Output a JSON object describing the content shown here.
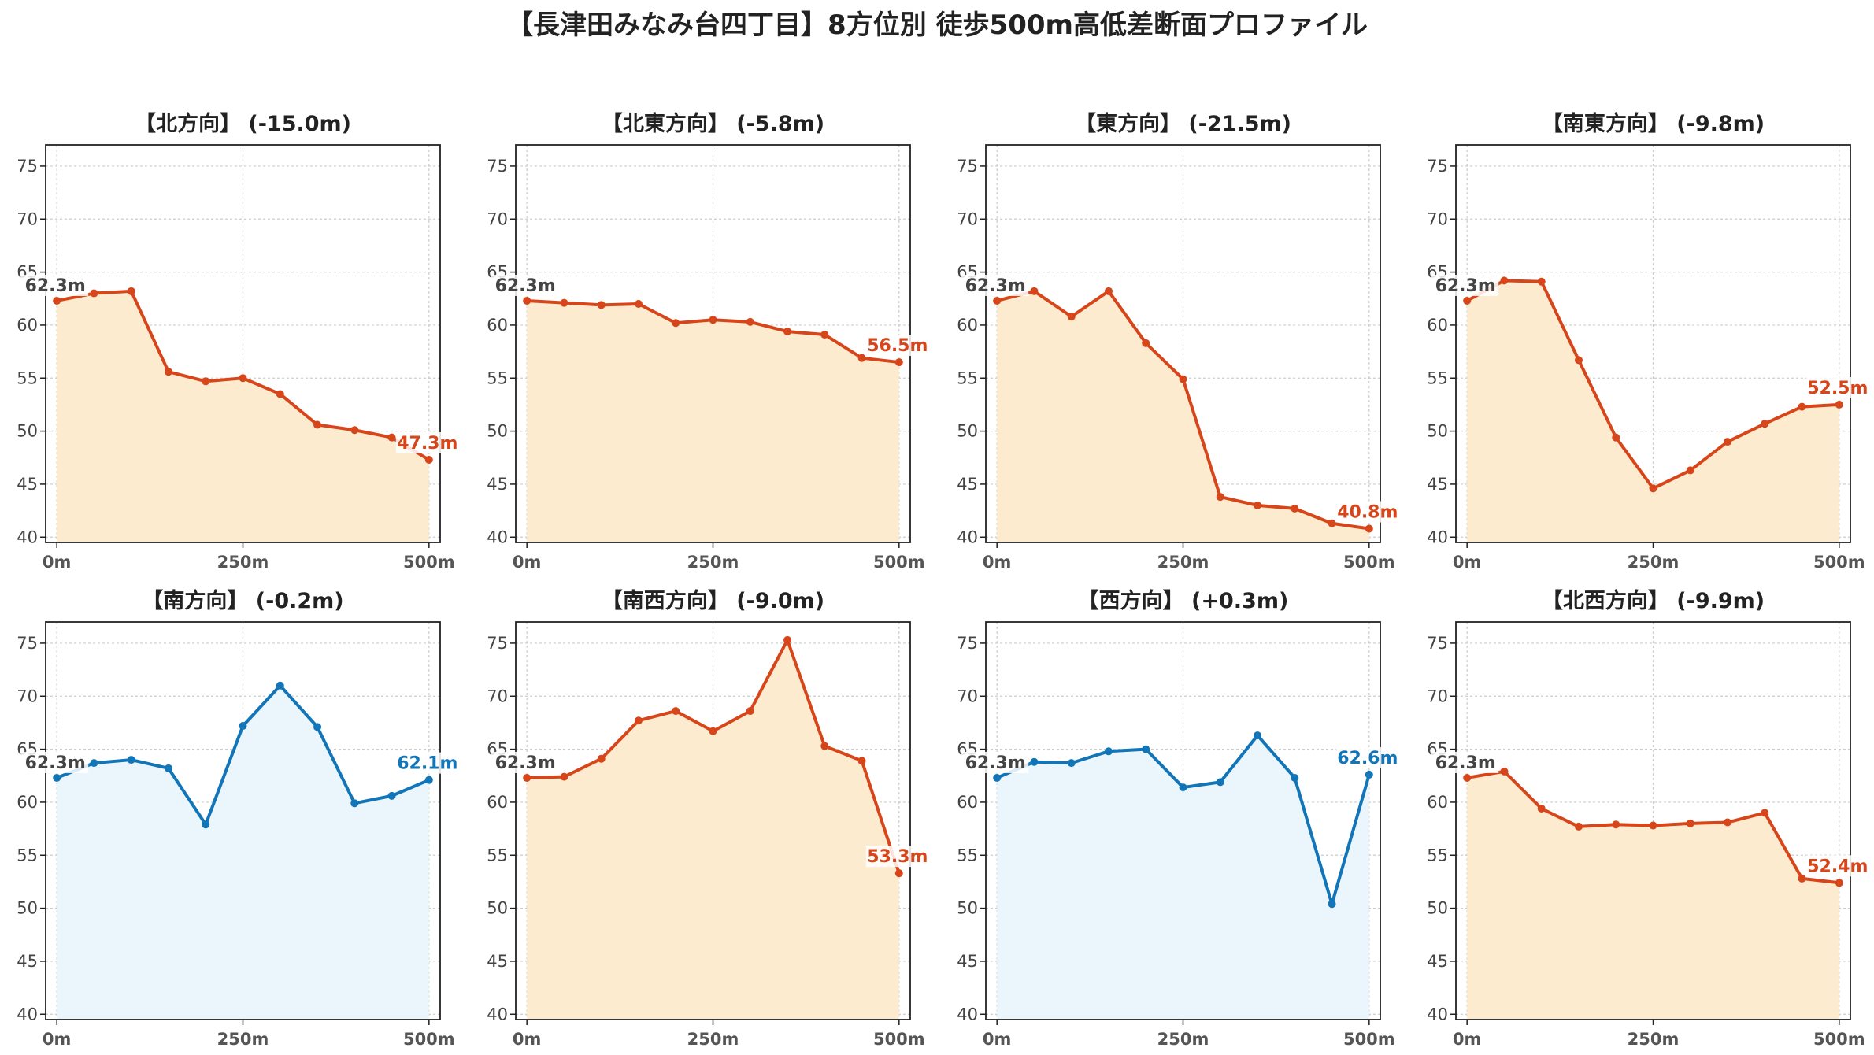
{
  "title": "【長津田みなみ台四丁目】8方位別 徒歩500m高低差断面プロファイル",
  "colors": {
    "down_line": "#d6461a",
    "down_fill": "#fdebd0",
    "up_line": "#1175b8",
    "up_fill": "#eaf6fc",
    "start_label": "#444444",
    "grid": "#cccccc"
  },
  "chart_data": [
    {
      "type": "line",
      "title": "【北方向】 (-15.0m)",
      "trend": "down",
      "x": [
        0,
        50,
        100,
        150,
        200,
        250,
        300,
        350,
        400,
        450,
        500
      ],
      "values": [
        62.3,
        63.0,
        63.2,
        55.6,
        54.7,
        55.0,
        53.5,
        50.6,
        50.1,
        49.4,
        47.3
      ],
      "start_label": "62.3m",
      "end_label": "47.3m",
      "xticks": [
        "0m",
        "250m",
        "500m"
      ],
      "yticks": [
        "40",
        "45",
        "50",
        "55",
        "60",
        "65",
        "70",
        "75"
      ],
      "ylim": [
        39.5,
        77
      ],
      "xlim": [
        -15,
        515
      ],
      "grid": true
    },
    {
      "type": "line",
      "title": "【北東方向】 (-5.8m)",
      "trend": "down",
      "x": [
        0,
        50,
        100,
        150,
        200,
        250,
        300,
        350,
        400,
        450,
        500
      ],
      "values": [
        62.3,
        62.1,
        61.9,
        62.0,
        60.2,
        60.5,
        60.3,
        59.4,
        59.1,
        56.9,
        56.5
      ],
      "start_label": "62.3m",
      "end_label": "56.5m",
      "xticks": [
        "0m",
        "250m",
        "500m"
      ],
      "yticks": [
        "40",
        "45",
        "50",
        "55",
        "60",
        "65",
        "70",
        "75"
      ],
      "ylim": [
        39.5,
        77
      ],
      "xlim": [
        -15,
        515
      ],
      "grid": true
    },
    {
      "type": "line",
      "title": "【東方向】 (-21.5m)",
      "trend": "down",
      "x": [
        0,
        50,
        100,
        150,
        200,
        250,
        300,
        350,
        400,
        450,
        500
      ],
      "values": [
        62.3,
        63.2,
        60.8,
        63.2,
        58.3,
        54.9,
        43.8,
        43.0,
        42.7,
        41.3,
        40.8
      ],
      "start_label": "62.3m",
      "end_label": "40.8m",
      "xticks": [
        "0m",
        "250m",
        "500m"
      ],
      "yticks": [
        "40",
        "45",
        "50",
        "55",
        "60",
        "65",
        "70",
        "75"
      ],
      "ylim": [
        39.5,
        77
      ],
      "xlim": [
        -15,
        515
      ],
      "grid": true
    },
    {
      "type": "line",
      "title": "【南東方向】 (-9.8m)",
      "trend": "down",
      "x": [
        0,
        50,
        100,
        150,
        200,
        250,
        300,
        350,
        400,
        450,
        500
      ],
      "values": [
        62.3,
        64.2,
        64.1,
        56.7,
        49.4,
        44.6,
        46.3,
        49.0,
        50.7,
        52.3,
        52.5
      ],
      "start_label": "62.3m",
      "end_label": "52.5m",
      "xticks": [
        "0m",
        "250m",
        "500m"
      ],
      "yticks": [
        "40",
        "45",
        "50",
        "55",
        "60",
        "65",
        "70",
        "75"
      ],
      "ylim": [
        39.5,
        77
      ],
      "xlim": [
        -15,
        515
      ],
      "grid": true
    },
    {
      "type": "line",
      "title": "【南方向】 (-0.2m)",
      "trend": "up",
      "x": [
        0,
        50,
        100,
        150,
        200,
        250,
        300,
        350,
        400,
        450,
        500
      ],
      "values": [
        62.3,
        63.7,
        64.0,
        63.2,
        57.9,
        67.2,
        71.0,
        67.1,
        59.9,
        60.6,
        62.1
      ],
      "start_label": "62.3m",
      "end_label": "62.1m",
      "xticks": [
        "0m",
        "250m",
        "500m"
      ],
      "yticks": [
        "40",
        "45",
        "50",
        "55",
        "60",
        "65",
        "70",
        "75"
      ],
      "ylim": [
        39.5,
        77
      ],
      "xlim": [
        -15,
        515
      ],
      "grid": true
    },
    {
      "type": "line",
      "title": "【南西方向】 (-9.0m)",
      "trend": "down",
      "x": [
        0,
        50,
        100,
        150,
        200,
        250,
        300,
        350,
        400,
        450,
        500
      ],
      "values": [
        62.3,
        62.4,
        64.1,
        67.7,
        68.6,
        66.7,
        68.6,
        75.3,
        65.3,
        63.9,
        53.3
      ],
      "start_label": "62.3m",
      "end_label": "53.3m",
      "xticks": [
        "0m",
        "250m",
        "500m"
      ],
      "yticks": [
        "40",
        "45",
        "50",
        "55",
        "60",
        "65",
        "70",
        "75"
      ],
      "ylim": [
        39.5,
        77
      ],
      "xlim": [
        -15,
        515
      ],
      "grid": true
    },
    {
      "type": "line",
      "title": "【西方向】 (+0.3m)",
      "trend": "up",
      "x": [
        0,
        50,
        100,
        150,
        200,
        250,
        300,
        350,
        400,
        450,
        500
      ],
      "values": [
        62.3,
        63.8,
        63.7,
        64.8,
        65.0,
        61.4,
        61.9,
        66.3,
        62.3,
        50.4,
        62.6
      ],
      "start_label": "62.3m",
      "end_label": "62.6m",
      "xticks": [
        "0m",
        "250m",
        "500m"
      ],
      "yticks": [
        "40",
        "45",
        "50",
        "55",
        "60",
        "65",
        "70",
        "75"
      ],
      "ylim": [
        39.5,
        77
      ],
      "xlim": [
        -15,
        515
      ],
      "grid": true
    },
    {
      "type": "line",
      "title": "【北西方向】 (-9.9m)",
      "trend": "down",
      "x": [
        0,
        50,
        100,
        150,
        200,
        250,
        300,
        350,
        400,
        450,
        500
      ],
      "values": [
        62.3,
        62.9,
        59.4,
        57.7,
        57.9,
        57.8,
        58.0,
        58.1,
        59.0,
        52.8,
        52.4
      ],
      "start_label": "62.3m",
      "end_label": "52.4m",
      "xticks": [
        "0m",
        "250m",
        "500m"
      ],
      "yticks": [
        "40",
        "45",
        "50",
        "55",
        "60",
        "65",
        "70",
        "75"
      ],
      "ylim": [
        39.5,
        77
      ],
      "xlim": [
        -15,
        515
      ],
      "grid": true
    }
  ]
}
